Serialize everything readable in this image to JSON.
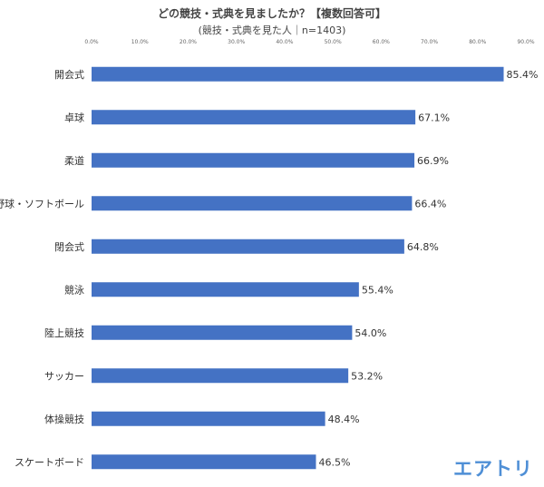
{
  "chart_data": {
    "type": "bar",
    "orientation": "horizontal",
    "title": "どの競技・式典を見ましたか？【複数回答可】",
    "subtitle": "(競技・式典を見た人｜n=1403)",
    "categories": [
      "開会式",
      "卓球",
      "柔道",
      "野球・ソフトボール",
      "閉会式",
      "競泳",
      "陸上競技",
      "サッカー",
      "体操競技",
      "スケートボード"
    ],
    "values": [
      85.4,
      67.1,
      66.9,
      66.4,
      64.8,
      55.4,
      54.0,
      53.2,
      48.4,
      46.5
    ],
    "value_labels": [
      "85.4%",
      "67.1%",
      "66.9%",
      "66.4%",
      "64.8%",
      "55.4%",
      "54.0%",
      "53.2%",
      "48.4%",
      "46.5%"
    ],
    "ticks": [
      0,
      10,
      20,
      30,
      40,
      50,
      60,
      70,
      80,
      90
    ],
    "tick_labels": [
      "0.0%",
      "10.0%",
      "20.0%",
      "30.0%",
      "40.0%",
      "50.0%",
      "60.0%",
      "70.0%",
      "80.0%",
      "90.0%"
    ],
    "xlim": [
      0,
      90
    ],
    "bar_color": "#4472c4",
    "grid": false,
    "legend": "none"
  },
  "brand": {
    "logo_text": "エアトリ",
    "color": "#4f8fd6"
  }
}
